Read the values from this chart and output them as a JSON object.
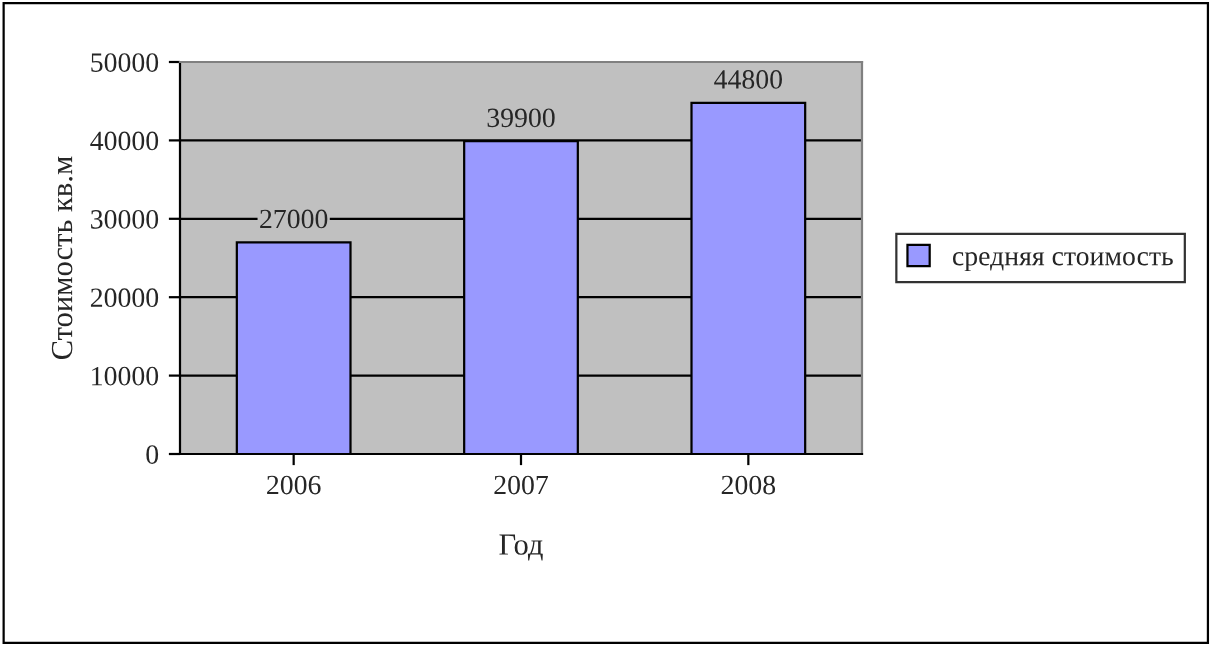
{
  "chart_data": {
    "type": "bar",
    "xlabel": "Год",
    "ylabel": "Стоимость кв.м",
    "categories": [
      "2006",
      "2007",
      "2008"
    ],
    "series": [
      {
        "name": "средняя стоимость",
        "color": "#9999ff",
        "values": [
          27000,
          39900,
          44800
        ]
      }
    ],
    "ylim": [
      0,
      50000
    ],
    "yticks": [
      0,
      10000,
      20000,
      30000,
      40000,
      50000
    ],
    "grid": "y",
    "legend": "right",
    "data_labels": true
  }
}
